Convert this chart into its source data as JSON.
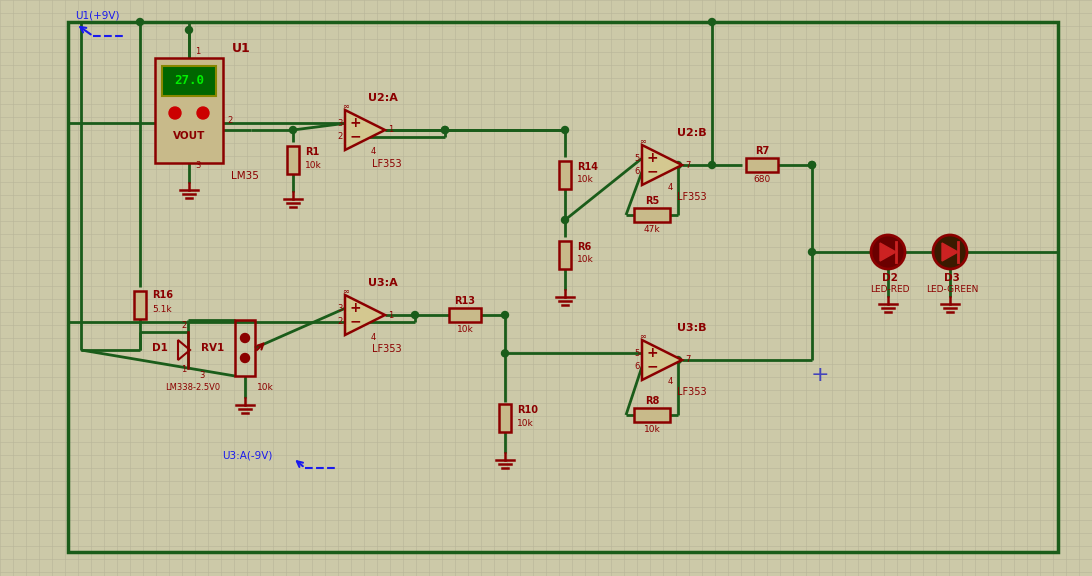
{
  "bg_color": "#ccc9a8",
  "grid_color": "#b8b598",
  "wire_color": "#1a5c1a",
  "cc": "#8b0000",
  "tc": "#8b0000",
  "btc": "#1a1aee",
  "lm35_fill": "#c8ba8a",
  "opamp_fill": "#d4c890",
  "display_bg": "#006600",
  "display_text": "#00ee00",
  "figsize": [
    10.92,
    5.76
  ],
  "dpi": 100,
  "border": [
    68,
    22,
    990,
    530
  ]
}
